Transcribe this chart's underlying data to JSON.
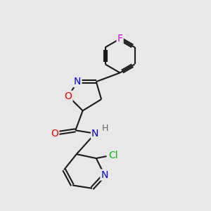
{
  "background_color": "#e8e8e8",
  "bond_color": "#1a1a1a",
  "atom_colors": {
    "N": "#0000ee",
    "O": "#ee0000",
    "F": "#ee00ee",
    "Cl": "#00bb00",
    "H": "#666666",
    "C": "#1a1a1a"
  },
  "font_size": 9,
  "fig_size": [
    3.0,
    3.0
  ],
  "dpi": 100
}
